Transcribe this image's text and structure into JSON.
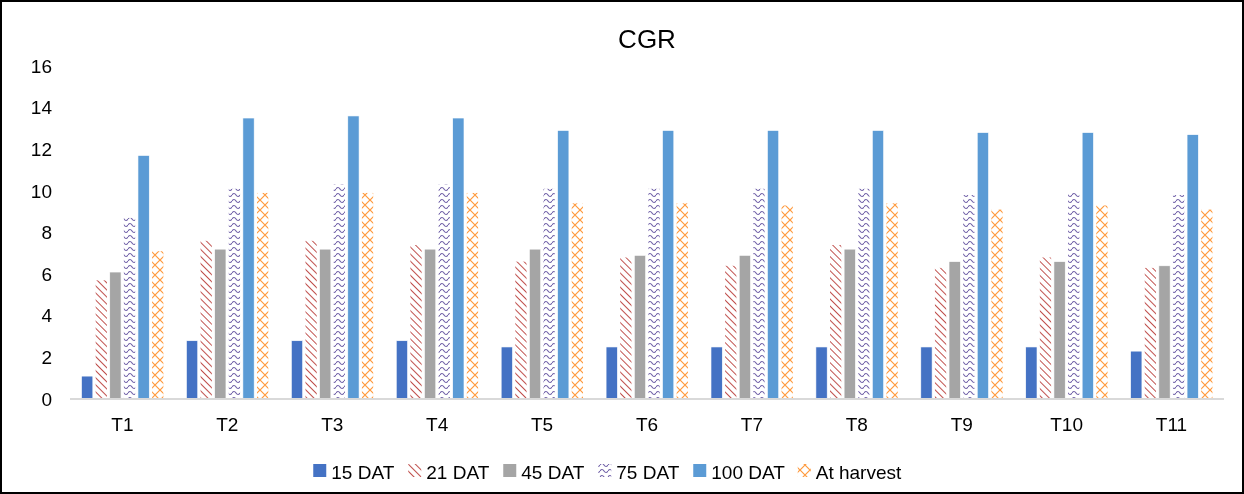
{
  "chart_data": {
    "type": "bar",
    "title": "CGR",
    "categories": [
      "T1",
      "T2",
      "T3",
      "T4",
      "T5",
      "T6",
      "T7",
      "T8",
      "T9",
      "T10",
      "T11"
    ],
    "series": [
      {
        "name": "15 DAT",
        "color": "#4472c4",
        "values": [
          1.1,
          2.8,
          2.8,
          2.8,
          2.5,
          2.5,
          2.5,
          2.5,
          2.5,
          2.5,
          2.3
        ]
      },
      {
        "name": "21 DAT",
        "color": "#c0504d",
        "values": [
          5.7,
          7.6,
          7.6,
          7.4,
          6.6,
          6.8,
          6.4,
          7.4,
          6.3,
          6.8,
          6.3
        ]
      },
      {
        "name": "45 DAT",
        "color": "#a5a5a5",
        "values": [
          6.1,
          7.2,
          7.2,
          7.2,
          7.2,
          6.9,
          6.9,
          7.2,
          6.6,
          6.6,
          6.4
        ]
      },
      {
        "name": "75 DAT",
        "color": "#7060a8",
        "values": [
          8.7,
          10.1,
          10.3,
          10.3,
          10.1,
          10.1,
          10.1,
          10.1,
          9.8,
          9.9,
          9.8
        ]
      },
      {
        "name": "100 DAT",
        "color": "#5b9bd5",
        "values": [
          11.7,
          13.5,
          13.6,
          13.5,
          12.9,
          12.9,
          12.9,
          12.9,
          12.8,
          12.8,
          12.7
        ]
      },
      {
        "name": "At harvest",
        "color": "#ff9a3c",
        "values": [
          7.1,
          9.9,
          9.9,
          9.9,
          9.4,
          9.4,
          9.3,
          9.4,
          9.1,
          9.3,
          9.1
        ]
      }
    ],
    "ylim": [
      0,
      16
    ],
    "yticks": [
      0,
      2,
      4,
      6,
      8,
      10,
      12,
      14,
      16
    ],
    "grid": false,
    "legend": "bottom"
  }
}
